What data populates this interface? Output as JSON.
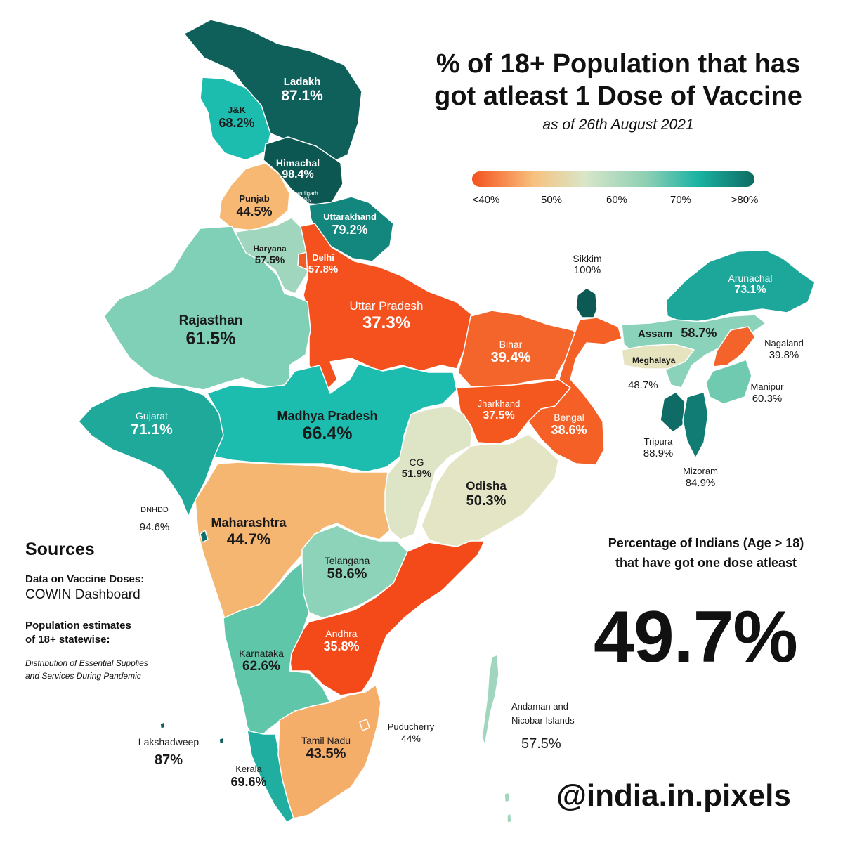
{
  "title_line1": "% of 18+ Population that has",
  "title_line2": "got atleast 1 Dose of Vaccine",
  "subtitle": "as of 26th August 2021",
  "scale": {
    "ticks": [
      "<40%",
      "50%",
      "60%",
      "70%",
      ">80%"
    ],
    "colors": [
      "#f4511e",
      "#f7c27f",
      "#d8e6c9",
      "#8ccfb4",
      "#1ab3a3",
      "#0e6b62"
    ]
  },
  "regions": [
    {
      "id": "ladakh",
      "name": "Ladakh",
      "value": "87.1%",
      "pct": 87.1,
      "color": "#0f5f5a"
    },
    {
      "id": "jk",
      "name": "J&K",
      "value": "68.2%",
      "pct": 68.2,
      "color": "#1cbcaf"
    },
    {
      "id": "himachal",
      "name": "Himachal",
      "value": "98.4%",
      "pct": 98.4,
      "color": "#0d5753"
    },
    {
      "id": "chandigarh",
      "name": "Chandigarh",
      "value": "50%",
      "pct": 50,
      "color": "#d9e4c8"
    },
    {
      "id": "punjab",
      "name": "Punjab",
      "value": "44.5%",
      "pct": 44.5,
      "color": "#f6b872"
    },
    {
      "id": "uttarakhand",
      "name": "Uttarakhand",
      "value": "79.2%",
      "pct": 79.2,
      "color": "#13877d"
    },
    {
      "id": "haryana",
      "name": "Haryana",
      "value": "57.5%",
      "pct": 57.5,
      "color": "#9fd6bd"
    },
    {
      "id": "delhi",
      "name": "Delhi",
      "value": "57.8%",
      "pct": 57.8,
      "color": "#f25a26"
    },
    {
      "id": "rajasthan",
      "name": "Rajasthan",
      "value": "61.5%",
      "pct": 61.5,
      "color": "#7fd0b6"
    },
    {
      "id": "up",
      "name": "Uttar Pradesh",
      "value": "37.3%",
      "pct": 37.3,
      "color": "#f4511e"
    },
    {
      "id": "bihar",
      "name": "Bihar",
      "value": "39.4%",
      "pct": 39.4,
      "color": "#f4652b"
    },
    {
      "id": "sikkim",
      "name": "Sikkim",
      "value": "100%",
      "pct": 100,
      "color": "#0d5a54"
    },
    {
      "id": "arunachal",
      "name": "Arunachal",
      "value": "73.1%",
      "pct": 73.1,
      "color": "#1ca79a"
    },
    {
      "id": "assam",
      "name": "Assam",
      "value": "58.7%",
      "pct": 58.7,
      "color": "#8ad3ba"
    },
    {
      "id": "nagaland",
      "name": "Nagaland",
      "value": "39.8%",
      "pct": 39.8,
      "color": "#f4642a"
    },
    {
      "id": "meghalaya",
      "name": "Meghalaya",
      "value": "48.7%",
      "pct": 48.7,
      "color": "#e5e4bf"
    },
    {
      "id": "manipur",
      "name": "Manipur",
      "value": "60.3%",
      "pct": 60.3,
      "color": "#6fcab0"
    },
    {
      "id": "tripura",
      "name": "Tripura",
      "value": "88.9%",
      "pct": 88.9,
      "color": "#0f6b65"
    },
    {
      "id": "mizoram",
      "name": "Mizoram",
      "value": "84.9%",
      "pct": 84.9,
      "color": "#117c74"
    },
    {
      "id": "gujarat",
      "name": "Gujarat",
      "value": "71.1%",
      "pct": 71.1,
      "color": "#1fa99b"
    },
    {
      "id": "mp",
      "name": "Madhya Pradesh",
      "value": "66.4%",
      "pct": 66.4,
      "color": "#1cbcae"
    },
    {
      "id": "jharkhand",
      "name": "Jharkhand",
      "value": "37.5%",
      "pct": 37.5,
      "color": "#f4581f"
    },
    {
      "id": "bengal",
      "name": "Bengal",
      "value": "38.6%",
      "pct": 38.6,
      "color": "#f46026"
    },
    {
      "id": "cg",
      "name": "CG",
      "value": "51.9%",
      "pct": 51.9,
      "color": "#dde5c6"
    },
    {
      "id": "odisha",
      "name": "Odisha",
      "value": "50.3%",
      "pct": 50.3,
      "color": "#e3e5c4"
    },
    {
      "id": "dnhdd",
      "name": "DNHDD",
      "value": "94.6%",
      "pct": 94.6,
      "color": "#0f6e67"
    },
    {
      "id": "maharashtra",
      "name": "Maharashtra",
      "value": "44.7%",
      "pct": 44.7,
      "color": "#f5b672"
    },
    {
      "id": "telangana",
      "name": "Telangana",
      "value": "58.6%",
      "pct": 58.6,
      "color": "#8cd3b9"
    },
    {
      "id": "andhra",
      "name": "Andhra",
      "value": "35.8%",
      "pct": 35.8,
      "color": "#f44a1a"
    },
    {
      "id": "karnataka",
      "name": "Karnataka",
      "value": "62.6%",
      "pct": 62.6,
      "color": "#5fc6a9"
    },
    {
      "id": "tamilnadu",
      "name": "Tamil Nadu",
      "value": "43.5%",
      "pct": 43.5,
      "color": "#f5ae6a"
    },
    {
      "id": "puducherry",
      "name": "Puducherry",
      "value": "44%",
      "pct": 44,
      "color": "#f5ae6a"
    },
    {
      "id": "kerala",
      "name": "Kerala",
      "value": "69.6%",
      "pct": 69.6,
      "color": "#1fae9f"
    },
    {
      "id": "lakshadweep",
      "name": "Lakshadweep",
      "value": "87%",
      "pct": 87,
      "color": "#0f5f5a"
    },
    {
      "id": "andaman",
      "name": "Andaman and Nicobar Islands",
      "value": "57.5%",
      "pct": 57.5,
      "color": "#9fd6bd"
    }
  ],
  "sources": {
    "heading": "Sources",
    "doses_label": "Data on Vaccine Doses:",
    "doses_source": "COWIN Dashboard",
    "pop_label_line1": "Population estimates",
    "pop_label_line2": "of 18+ statewise:",
    "pop_source_line1": "Distribution of Essential Supplies",
    "pop_source_line2": "and Services During Pandemic"
  },
  "summary": {
    "line1": "Percentage of Indians (Age > 18)",
    "line2": "that have got one dose atleast",
    "value": "49.7%"
  },
  "handle": "@india.in.pixels"
}
